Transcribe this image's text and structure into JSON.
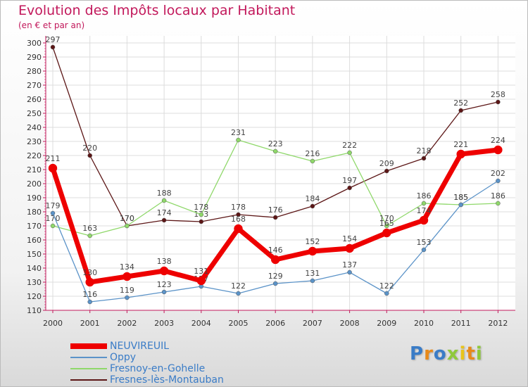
{
  "chart_data": {
    "type": "line",
    "title": "Evolution des Impôts locaux par Habitant",
    "subtitle": "(en € et par an)",
    "x": [
      "2000",
      "2001",
      "2002",
      "2003",
      "2004",
      "2005",
      "2006",
      "2007",
      "2008",
      "2009",
      "2010",
      "2011",
      "2012"
    ],
    "ylim": [
      110,
      300
    ],
    "yticks": [
      110,
      120,
      130,
      140,
      150,
      160,
      170,
      180,
      190,
      200,
      210,
      220,
      230,
      240,
      250,
      260,
      270,
      280,
      290,
      300
    ],
    "grid": true,
    "legend_position": "bottom-left",
    "series": [
      {
        "name": "Fresnes-lès-Montauban",
        "color": "#5c1616",
        "values": [
          297,
          220,
          170,
          174,
          173,
          178,
          176,
          184,
          197,
          209,
          218,
          252,
          258
        ]
      },
      {
        "name": "Fresnoy-en-Gohelle",
        "color": "#8fd86a",
        "values": [
          170,
          163,
          170,
          188,
          178,
          231,
          223,
          216,
          222,
          170,
          186,
          185,
          186
        ]
      },
      {
        "name": "Oppy",
        "color": "#5b93c8",
        "values": [
          179,
          116,
          119,
          123,
          127,
          122,
          129,
          131,
          137,
          122,
          153,
          185,
          202
        ]
      },
      {
        "name": "NEUVIREUIL",
        "color": "#ee0000",
        "values": [
          211,
          130,
          134,
          138,
          131,
          168,
          146,
          152,
          154,
          165,
          174,
          221,
          224
        ]
      }
    ],
    "legend_order": [
      "NEUVIREUIL",
      "Oppy",
      "Fresnoy-en-Gohelle",
      "Fresnes-lès-Montauban"
    ]
  },
  "legend": {
    "items": [
      {
        "label": "NEUVIREUIL",
        "color": "#ee0000"
      },
      {
        "label": "Oppy",
        "color": "#5b93c8"
      },
      {
        "label": "Fresnoy-en-Gohelle",
        "color": "#8fd86a"
      },
      {
        "label": "Fresnes-lès-Montauban",
        "color": "#5c1616"
      }
    ]
  },
  "logo": {
    "text": "Proxiti"
  }
}
